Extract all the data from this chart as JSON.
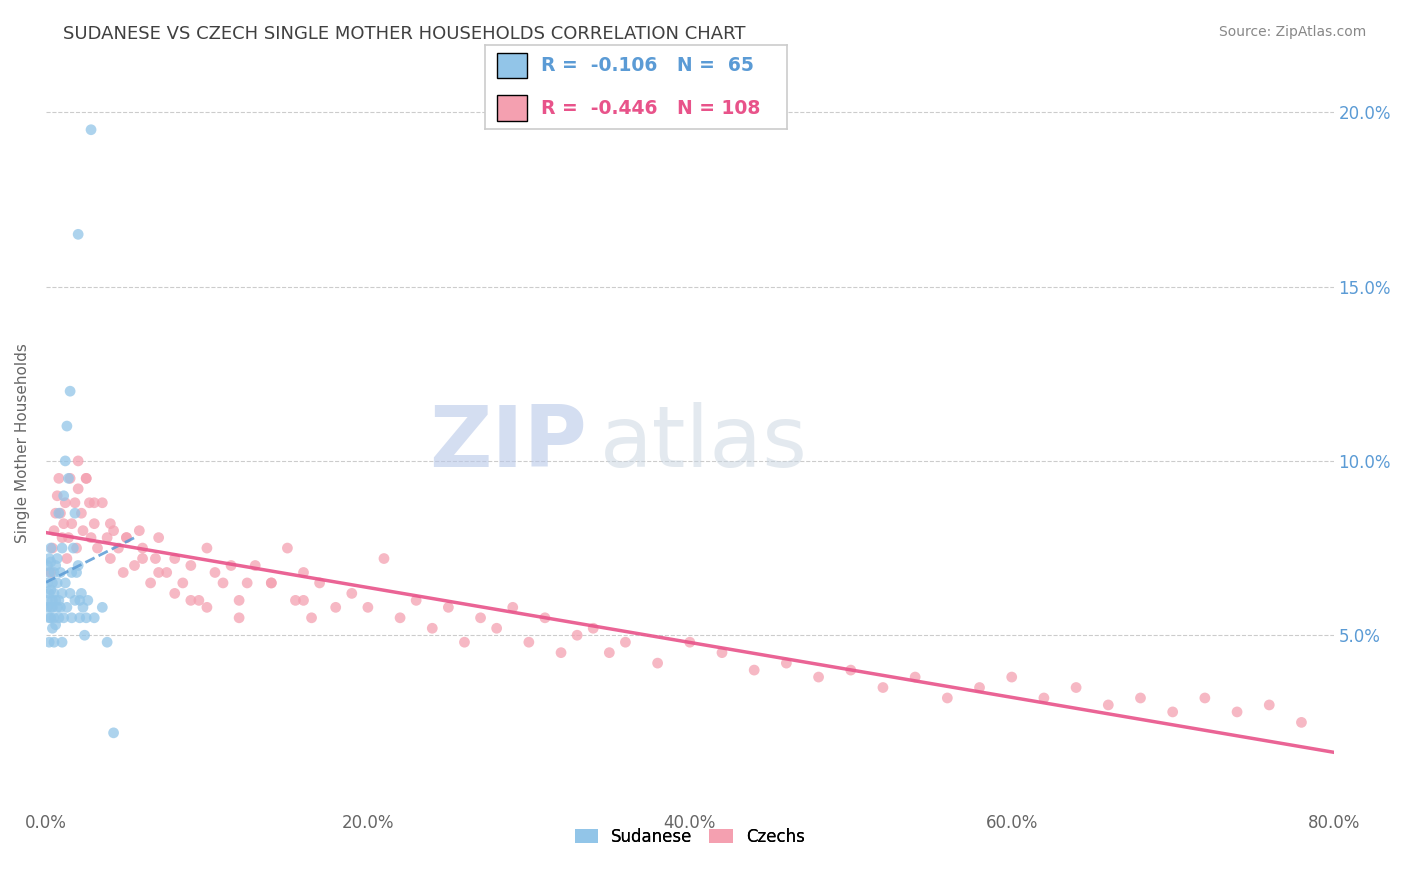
{
  "title": "SUDANESE VS CZECH SINGLE MOTHER HOUSEHOLDS CORRELATION CHART",
  "source_text": "Source: ZipAtlas.com",
  "ylabel": "Single Mother Households",
  "xlim": [
    0.0,
    0.8
  ],
  "ylim": [
    0.0,
    0.21
  ],
  "xtick_labels": [
    "0.0%",
    "20.0%",
    "40.0%",
    "60.0%",
    "80.0%"
  ],
  "xtick_vals": [
    0.0,
    0.2,
    0.4,
    0.6,
    0.8
  ],
  "ytick_labels": [
    "5.0%",
    "10.0%",
    "15.0%",
    "20.0%"
  ],
  "ytick_vals": [
    0.05,
    0.1,
    0.15,
    0.2
  ],
  "sudanese_color": "#92c5e8",
  "czech_color": "#f4a0b0",
  "sudanese_line_color": "#5b9bd5",
  "czech_line_color": "#e8538a",
  "right_tick_color": "#5b9bd5",
  "legend_R_sudanese": "-0.106",
  "legend_N_sudanese": "65",
  "legend_R_czech": "-0.446",
  "legend_N_czech": "108",
  "watermark_color": "#ccd8ee",
  "background_color": "#ffffff",
  "title_color": "#404040",
  "axis_label_color": "#666666",
  "source_color": "#888888",
  "sudanese_x": [
    0.001,
    0.001,
    0.001,
    0.001,
    0.002,
    0.002,
    0.002,
    0.002,
    0.002,
    0.003,
    0.003,
    0.003,
    0.003,
    0.003,
    0.004,
    0.004,
    0.004,
    0.004,
    0.005,
    0.005,
    0.005,
    0.005,
    0.006,
    0.006,
    0.006,
    0.007,
    0.007,
    0.007,
    0.008,
    0.008,
    0.008,
    0.009,
    0.009,
    0.01,
    0.01,
    0.01,
    0.011,
    0.011,
    0.012,
    0.012,
    0.013,
    0.013,
    0.014,
    0.015,
    0.015,
    0.016,
    0.016,
    0.017,
    0.018,
    0.018,
    0.019,
    0.02,
    0.02,
    0.021,
    0.021,
    0.022,
    0.023,
    0.024,
    0.025,
    0.026,
    0.028,
    0.03,
    0.035,
    0.038,
    0.042
  ],
  "sudanese_y": [
    0.06,
    0.065,
    0.07,
    0.058,
    0.055,
    0.062,
    0.068,
    0.072,
    0.048,
    0.058,
    0.063,
    0.071,
    0.075,
    0.055,
    0.06,
    0.065,
    0.052,
    0.058,
    0.062,
    0.055,
    0.068,
    0.048,
    0.06,
    0.053,
    0.07,
    0.058,
    0.065,
    0.072,
    0.055,
    0.06,
    0.085,
    0.068,
    0.058,
    0.075,
    0.062,
    0.048,
    0.09,
    0.055,
    0.1,
    0.065,
    0.11,
    0.058,
    0.095,
    0.062,
    0.12,
    0.068,
    0.055,
    0.075,
    0.06,
    0.085,
    0.068,
    0.07,
    0.165,
    0.06,
    0.055,
    0.062,
    0.058,
    0.05,
    0.055,
    0.06,
    0.195,
    0.055,
    0.058,
    0.048,
    0.022
  ],
  "czech_x": [
    0.003,
    0.004,
    0.005,
    0.006,
    0.007,
    0.008,
    0.009,
    0.01,
    0.011,
    0.012,
    0.013,
    0.014,
    0.015,
    0.016,
    0.018,
    0.019,
    0.02,
    0.022,
    0.023,
    0.025,
    0.027,
    0.028,
    0.03,
    0.032,
    0.035,
    0.038,
    0.04,
    0.042,
    0.045,
    0.048,
    0.05,
    0.055,
    0.058,
    0.06,
    0.065,
    0.068,
    0.07,
    0.075,
    0.08,
    0.085,
    0.09,
    0.095,
    0.1,
    0.105,
    0.11,
    0.115,
    0.12,
    0.125,
    0.13,
    0.14,
    0.15,
    0.155,
    0.16,
    0.165,
    0.17,
    0.18,
    0.19,
    0.2,
    0.21,
    0.22,
    0.23,
    0.24,
    0.25,
    0.26,
    0.27,
    0.28,
    0.29,
    0.3,
    0.31,
    0.32,
    0.33,
    0.34,
    0.35,
    0.36,
    0.38,
    0.4,
    0.42,
    0.44,
    0.46,
    0.48,
    0.5,
    0.52,
    0.54,
    0.56,
    0.58,
    0.6,
    0.62,
    0.64,
    0.66,
    0.68,
    0.7,
    0.72,
    0.74,
    0.76,
    0.78,
    0.02,
    0.025,
    0.03,
    0.04,
    0.05,
    0.06,
    0.07,
    0.08,
    0.09,
    0.1,
    0.12,
    0.14,
    0.16
  ],
  "czech_y": [
    0.068,
    0.075,
    0.08,
    0.085,
    0.09,
    0.095,
    0.085,
    0.078,
    0.082,
    0.088,
    0.072,
    0.078,
    0.095,
    0.082,
    0.088,
    0.075,
    0.092,
    0.085,
    0.08,
    0.095,
    0.088,
    0.078,
    0.082,
    0.075,
    0.088,
    0.078,
    0.072,
    0.08,
    0.075,
    0.068,
    0.078,
    0.07,
    0.08,
    0.075,
    0.065,
    0.072,
    0.078,
    0.068,
    0.072,
    0.065,
    0.07,
    0.06,
    0.075,
    0.068,
    0.065,
    0.07,
    0.06,
    0.065,
    0.07,
    0.065,
    0.075,
    0.06,
    0.068,
    0.055,
    0.065,
    0.058,
    0.062,
    0.058,
    0.072,
    0.055,
    0.06,
    0.052,
    0.058,
    0.048,
    0.055,
    0.052,
    0.058,
    0.048,
    0.055,
    0.045,
    0.05,
    0.052,
    0.045,
    0.048,
    0.042,
    0.048,
    0.045,
    0.04,
    0.042,
    0.038,
    0.04,
    0.035,
    0.038,
    0.032,
    0.035,
    0.038,
    0.032,
    0.035,
    0.03,
    0.032,
    0.028,
    0.032,
    0.028,
    0.03,
    0.025,
    0.1,
    0.095,
    0.088,
    0.082,
    0.078,
    0.072,
    0.068,
    0.062,
    0.06,
    0.058,
    0.055,
    0.065,
    0.06
  ]
}
